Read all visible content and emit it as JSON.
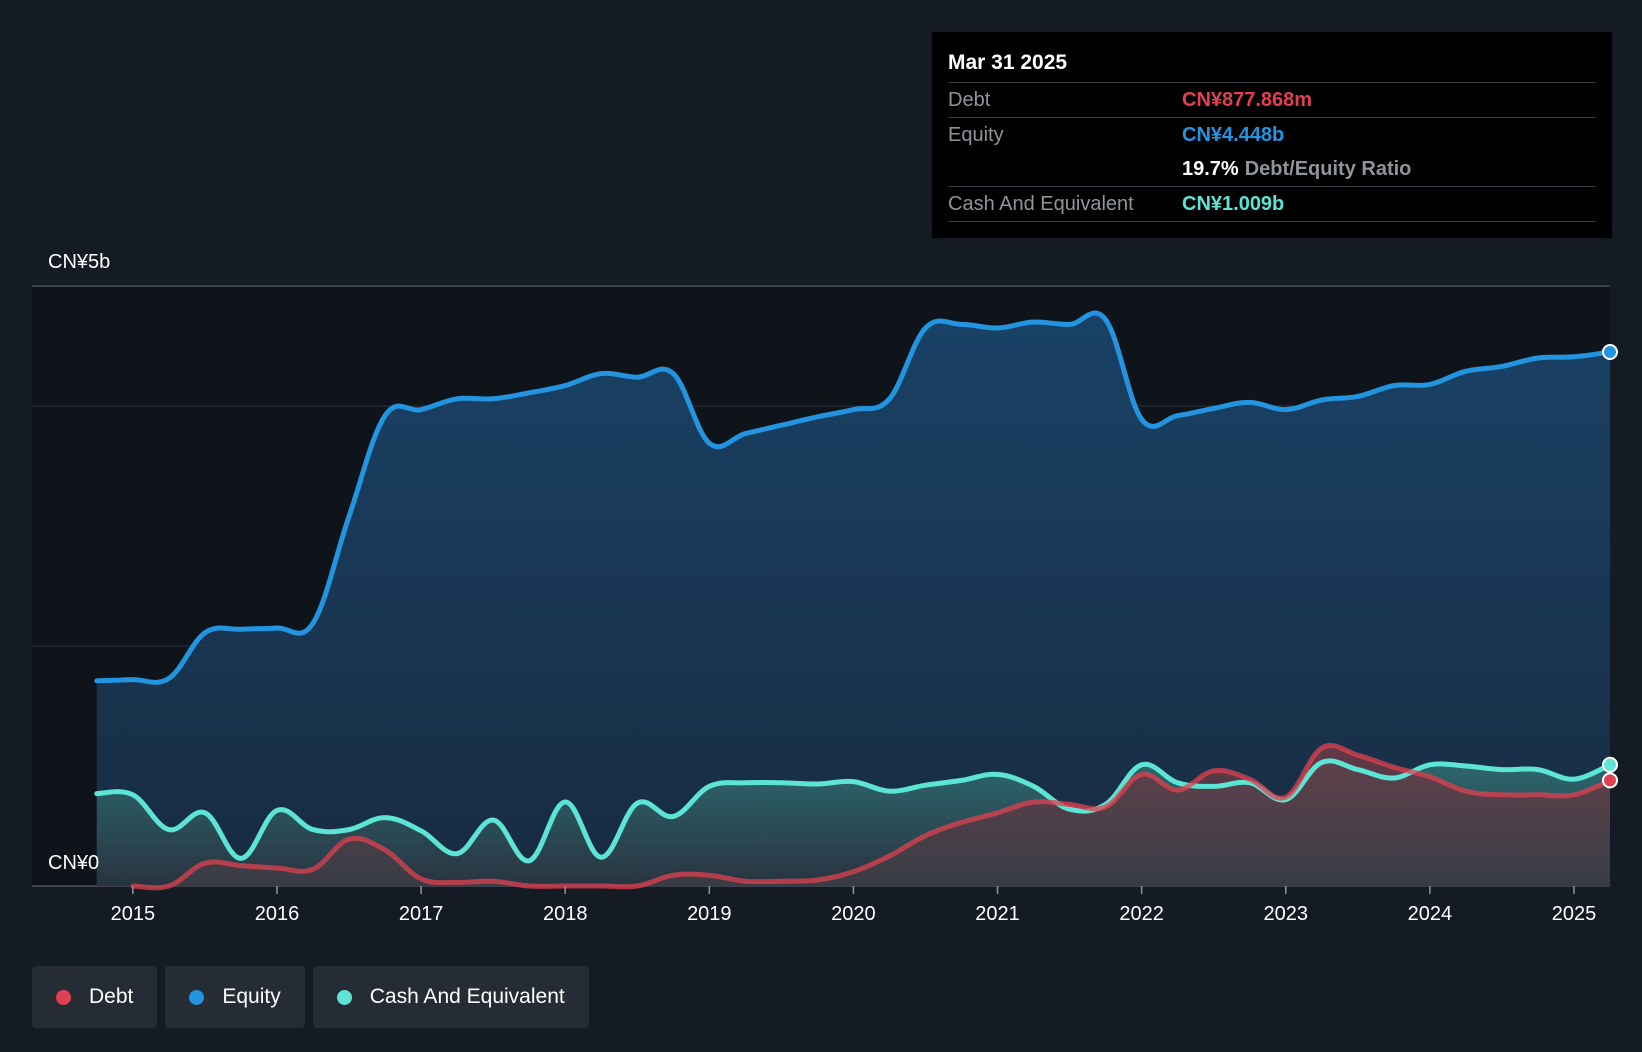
{
  "tooltip": {
    "date": "Mar 31 2025",
    "debt_label": "Debt",
    "debt_value": "CN¥877.868m",
    "equity_label": "Equity",
    "equity_value": "CN¥4.448b",
    "ratio_value": "19.7%",
    "ratio_label": "Debt/Equity Ratio",
    "cash_label": "Cash And Equivalent",
    "cash_value": "CN¥1.009b"
  },
  "legend": {
    "debt": "Debt",
    "equity": "Equity",
    "cash": "Cash And Equivalent"
  },
  "colors": {
    "debt": "#e0404f",
    "equity": "#2394df",
    "cash": "#5ce4d4",
    "background": "#151b24",
    "plot_background": "#0f131a"
  },
  "chart_data": {
    "type": "area",
    "title": "",
    "xlabel": "",
    "ylabel": "",
    "unit": "CN¥ billions",
    "ylim": [
      0,
      5
    ],
    "y_tick_labels": [
      "CN¥5b",
      "CN¥0"
    ],
    "x_tick_labels": [
      "2015",
      "2016",
      "2017",
      "2018",
      "2019",
      "2020",
      "2021",
      "2022",
      "2023",
      "2024",
      "2025"
    ],
    "x_tick_values": [
      2015,
      2016,
      2017,
      2018,
      2019,
      2020,
      2021,
      2022,
      2023,
      2024,
      2025
    ],
    "x_range": [
      2014.3,
      2025.25
    ],
    "series": [
      {
        "name": "Equity",
        "key": "equity",
        "x": [
          2014.75,
          2015.0,
          2015.25,
          2015.5,
          2015.75,
          2016.0,
          2016.25,
          2016.5,
          2016.75,
          2017.0,
          2017.25,
          2017.5,
          2017.75,
          2018.0,
          2018.25,
          2018.5,
          2018.75,
          2019.0,
          2019.25,
          2019.5,
          2019.75,
          2020.0,
          2020.25,
          2020.5,
          2020.75,
          2021.0,
          2021.25,
          2021.5,
          2021.75,
          2022.0,
          2022.25,
          2022.5,
          2022.75,
          2023.0,
          2023.25,
          2023.5,
          2023.75,
          2024.0,
          2024.25,
          2024.5,
          2024.75,
          2025.0,
          2025.25
        ],
        "values": [
          1.71,
          1.72,
          1.73,
          2.11,
          2.14,
          2.15,
          2.19,
          3.08,
          3.92,
          3.97,
          4.06,
          4.06,
          4.11,
          4.17,
          4.27,
          4.24,
          4.27,
          3.69,
          3.77,
          3.84,
          3.91,
          3.97,
          4.06,
          4.65,
          4.68,
          4.65,
          4.7,
          4.68,
          4.72,
          3.89,
          3.92,
          3.98,
          4.03,
          3.97,
          4.05,
          4.08,
          4.17,
          4.18,
          4.29,
          4.33,
          4.4,
          4.41,
          4.45
        ]
      },
      {
        "name": "Cash And Equivalent",
        "key": "cash",
        "x": [
          2014.75,
          2015.0,
          2015.25,
          2015.5,
          2015.75,
          2016.0,
          2016.25,
          2016.5,
          2016.75,
          2017.0,
          2017.25,
          2017.5,
          2017.75,
          2018.0,
          2018.25,
          2018.5,
          2018.75,
          2019.0,
          2019.25,
          2019.5,
          2019.75,
          2020.0,
          2020.25,
          2020.5,
          2020.75,
          2021.0,
          2021.25,
          2021.5,
          2021.75,
          2022.0,
          2022.25,
          2022.5,
          2022.75,
          2023.0,
          2023.25,
          2023.5,
          2023.75,
          2024.0,
          2024.25,
          2024.5,
          2024.75,
          2025.0,
          2025.25
        ],
        "values": [
          0.77,
          0.76,
          0.47,
          0.61,
          0.23,
          0.63,
          0.47,
          0.47,
          0.57,
          0.46,
          0.27,
          0.55,
          0.21,
          0.7,
          0.24,
          0.69,
          0.58,
          0.83,
          0.86,
          0.86,
          0.85,
          0.87,
          0.79,
          0.84,
          0.88,
          0.93,
          0.83,
          0.64,
          0.68,
          1.01,
          0.86,
          0.83,
          0.86,
          0.72,
          1.03,
          0.97,
          0.9,
          1.01,
          1.0,
          0.97,
          0.97,
          0.89,
          1.01
        ]
      },
      {
        "name": "Debt",
        "key": "debt",
        "x": [
          2015.0,
          2015.25,
          2015.5,
          2015.75,
          2016.0,
          2016.25,
          2016.5,
          2016.75,
          2017.0,
          2017.25,
          2017.5,
          2017.75,
          2018.0,
          2018.25,
          2018.5,
          2018.75,
          2019.0,
          2019.25,
          2019.5,
          2019.75,
          2020.0,
          2020.25,
          2020.5,
          2020.75,
          2021.0,
          2021.25,
          2021.5,
          2021.75,
          2022.0,
          2022.25,
          2022.5,
          2022.75,
          2023.0,
          2023.25,
          2023.5,
          2023.75,
          2024.0,
          2024.25,
          2024.5,
          2024.75,
          2025.0,
          2025.25
        ],
        "values": [
          0.0,
          0.0,
          0.19,
          0.17,
          0.15,
          0.14,
          0.39,
          0.3,
          0.06,
          0.03,
          0.04,
          0.0,
          0.0,
          0.0,
          0.0,
          0.09,
          0.09,
          0.04,
          0.04,
          0.05,
          0.12,
          0.25,
          0.42,
          0.53,
          0.61,
          0.7,
          0.68,
          0.66,
          0.93,
          0.8,
          0.96,
          0.89,
          0.74,
          1.15,
          1.09,
          0.99,
          0.91,
          0.79,
          0.76,
          0.76,
          0.76,
          0.88
        ]
      }
    ]
  }
}
